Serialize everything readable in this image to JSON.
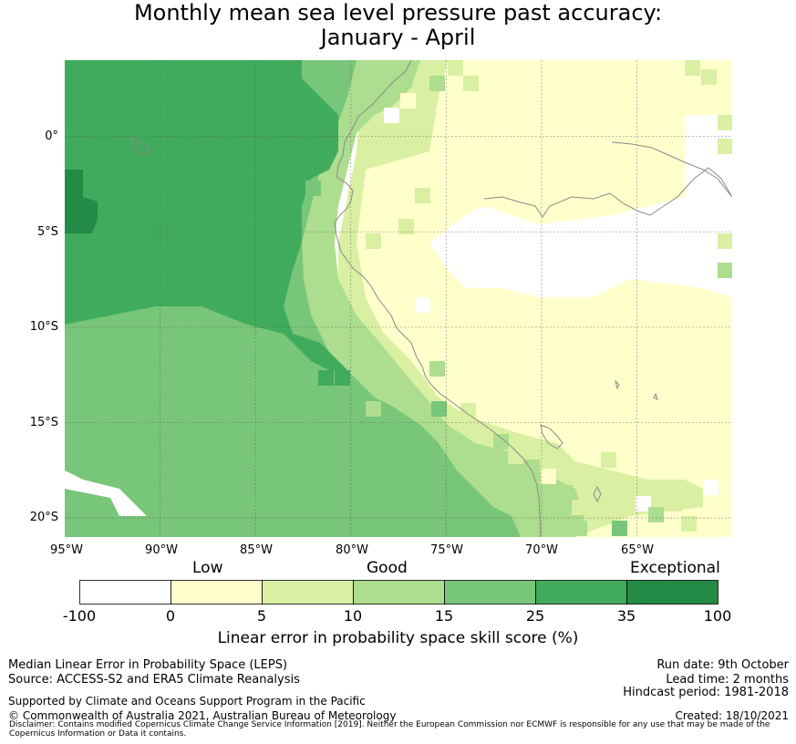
{
  "title": {
    "line1": "Monthly mean sea level pressure past accuracy:",
    "line2": "January - April"
  },
  "map": {
    "lat_labels": [
      "0°",
      "5°S",
      "10°S",
      "15°S",
      "20°S"
    ],
    "lon_labels": [
      "95°W",
      "90°W",
      "85°W",
      "80°W",
      "75°W",
      "70°W",
      "65°W"
    ],
    "region_extent": {
      "lon_west": -95,
      "lon_east": -60,
      "lat_north": 4,
      "lat_south": -21
    },
    "skill_zones": [
      {
        "name": "exceptional",
        "color": "#238b45",
        "range": "35-100"
      },
      {
        "name": "very_good",
        "color": "#41ab5d",
        "range": "25-35"
      },
      {
        "name": "good_high",
        "color": "#78c679",
        "range": "15-25"
      },
      {
        "name": "good_low",
        "color": "#addd8e",
        "range": "10-15"
      },
      {
        "name": "low_high",
        "color": "#d9f0a3",
        "range": "5-10"
      },
      {
        "name": "low",
        "color": "#ffffcc",
        "range": "0-5"
      },
      {
        "name": "none",
        "color": "#ffffff",
        "range": "-100-0"
      }
    ]
  },
  "colorbar": {
    "categories": [
      "Low",
      "Good",
      "Exceptional"
    ],
    "ticks": [
      "-100",
      "0",
      "5",
      "10",
      "15",
      "25",
      "35",
      "100"
    ],
    "colors": [
      "#ffffff",
      "#ffffcc",
      "#d9f0a3",
      "#addd8e",
      "#78c679",
      "#41ab5d",
      "#238b45"
    ],
    "label": "Linear error in probability space skill score (%)"
  },
  "footer": {
    "left": [
      "Median Linear Error in Probability Space (LEPS)",
      "Source: ACCESS-S2 and ERA5 Climate Reanalysis",
      "Supported by Climate and Oceans Support Program in the Pacific",
      "© Commonwealth of Australia 2021, Australian Bureau of Meteorology"
    ],
    "right": [
      "Run date: 9th October",
      "Lead time: 2 months",
      "Hindcast period: 1981-2018",
      "Created: 18/10/2021"
    ],
    "disclaimer": "Disclaimer: Contains modified Copernicus Climate Change Service Information [2019]. Neither the European Commission nor ECMWF is responsible for any use that may be made of the Copernicus Information or Data it contains."
  }
}
